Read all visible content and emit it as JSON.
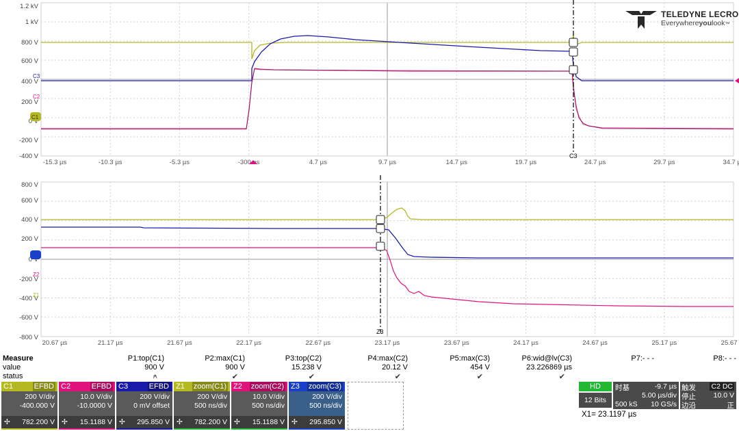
{
  "brand": {
    "name": "TELEDYNE LECROY",
    "tagline_pre": "Everywhere",
    "tagline_bold": "you",
    "tagline_post": "look",
    "tm": "™"
  },
  "colors": {
    "c1": "#b5b820",
    "c2": "#e0137d",
    "c3": "#1a1aa8",
    "grid": "#c8c8c8",
    "axis_text": "#8a8a40"
  },
  "top_plot": {
    "y_ticks": [
      "1.2 kV",
      "1 kV",
      "800 V",
      "600 V",
      "400 V",
      "200 V",
      "0 V",
      "-200 V",
      "-400 V"
    ],
    "x_ticks": [
      "-15.3 µs",
      "-10.3 µs",
      "-5.3 µs",
      "-300 ns",
      "4.7 µs",
      "9.7 µs",
      "14.7 µs",
      "19.7 µs",
      "24.7 µs",
      "29.7 µs",
      "34.7 µs"
    ],
    "cursor_label": "C3",
    "markers": {
      "c1": "C1",
      "c2": "C2",
      "c3": "C3"
    }
  },
  "bottom_plot": {
    "y_ticks": [
      "800 V",
      "600 V",
      "400 V",
      "200 V",
      "0 V",
      "-200 V",
      "-400 V",
      "-600 V",
      "-800 V"
    ],
    "x_ticks": [
      "20.67 µs",
      "21.17 µs",
      "21.67 µs",
      "22.17 µs",
      "22.67 µs",
      "23.17 µs",
      "23.67 µs",
      "24.17 µs",
      "24.67 µs",
      "25.17 µs",
      "25.67 µs"
    ],
    "cursor_label": "Z3",
    "markers": {
      "z2": "Z2",
      "z1": "Z1"
    }
  },
  "measure": {
    "title": "Measure",
    "row_labels": [
      "value",
      "status"
    ],
    "params": [
      {
        "name": "P1:top(C1)",
        "value": "900 V",
        "status": "⍲"
      },
      {
        "name": "P2:max(C1)",
        "value": "900 V",
        "status": "✔"
      },
      {
        "name": "P3:top(C2)",
        "value": "15.238 V",
        "status": "✔"
      },
      {
        "name": "P4:max(C2)",
        "value": "20.12 V",
        "status": "✔"
      },
      {
        "name": "P5:max(C3)",
        "value": "454 V",
        "status": "✔"
      },
      {
        "name": "P6:wid@lv(C3)",
        "value": "23.226869 µs",
        "status": "✔"
      },
      {
        "name": "P7:- - -",
        "value": "",
        "status": ""
      },
      {
        "name": "P8:- - -",
        "value": "",
        "status": ""
      }
    ]
  },
  "channels": [
    {
      "id": "C1",
      "badge": "EFBD",
      "l1": "200 V/div",
      "l2": "-400.000 V",
      "foot": "782.200 V"
    },
    {
      "id": "C2",
      "badge": "EFBD",
      "l1": "10.0 V/div",
      "l2": "-10.0000 V",
      "foot": "15.1188 V"
    },
    {
      "id": "C3",
      "badge": "EFBD",
      "l1": "200 V/div",
      "l2": "0 mV offset",
      "foot": "295.850 V"
    },
    {
      "id": "Z1",
      "badge": "zoom(C1)",
      "l1": "200 V/div",
      "l2": "500 ns/div",
      "foot": "782.200 V"
    },
    {
      "id": "Z2",
      "badge": "zoom(C2)",
      "l1": "10.0 V/div",
      "l2": "500 ns/div",
      "foot": "15.1188 V"
    },
    {
      "id": "Z3",
      "badge": "zoom(C3)",
      "l1": "200 V/div",
      "l2": "500 ns/div",
      "foot": "295.850 V"
    }
  ],
  "timebase": {
    "hd": "HD",
    "bits": "12 Bits",
    "tb_label": "时基",
    "tb_offset": "-9.7 µs",
    "tb_div": "5.00 µs/div",
    "sample": "500 kS",
    "rate": "10 GS/s",
    "trig_label": "触发",
    "trig_badge": "C2 DC",
    "stop_label": "停止",
    "trig_level": "10.0 V",
    "edge_label": "边沿",
    "edge_dir": "正",
    "x1": "X1=  23.1197 µs"
  }
}
